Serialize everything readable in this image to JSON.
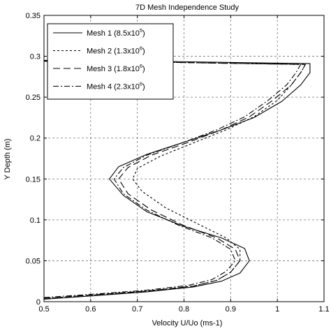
{
  "chart_data": {
    "type": "line",
    "title": "7D Mesh Independence Study",
    "xlabel": "Velocity U/Uo (ms-1)",
    "ylabel": "Y Depth (m)",
    "xlim": [
      0.5,
      1.1
    ],
    "ylim": [
      0,
      0.35
    ],
    "xticks": [
      "0.5",
      "0.6",
      "0.7",
      "0.8",
      "0.9",
      "1",
      "1.1"
    ],
    "yticks": [
      "0",
      "0.05",
      "0.1",
      "0.15",
      "0.2",
      "0.25",
      "0.3",
      "0.35"
    ],
    "grid": true,
    "legend_position": "top-left",
    "series": [
      {
        "name": "Mesh 1 (8.5x10",
        "name_exp": "5",
        "name_end": ")",
        "dash": "none",
        "x": [
          0.5,
          0.6,
          0.72,
          0.82,
          0.88,
          0.92,
          0.94,
          0.93,
          0.88,
          0.8,
          0.72,
          0.67,
          0.64,
          0.66,
          0.72,
          0.8,
          0.88,
          0.95,
          1.01,
          1.05,
          1.07,
          1.07,
          0.72,
          0.5
        ],
        "y": [
          0.003,
          0.007,
          0.012,
          0.018,
          0.025,
          0.035,
          0.05,
          0.065,
          0.078,
          0.092,
          0.11,
          0.13,
          0.15,
          0.165,
          0.18,
          0.195,
          0.21,
          0.225,
          0.245,
          0.265,
          0.28,
          0.291,
          0.294,
          0.295
        ]
      },
      {
        "name": "Mesh 2 (1.3x10",
        "name_exp": "6",
        "name_end": ")",
        "dash": "3,3",
        "x": [
          0.5,
          0.6,
          0.72,
          0.82,
          0.87,
          0.9,
          0.92,
          0.92,
          0.89,
          0.83,
          0.76,
          0.71,
          0.69,
          0.7,
          0.75,
          0.82,
          0.89,
          0.95,
          1,
          1.03,
          1.05,
          1.06,
          0.72,
          0.5
        ],
        "y": [
          0.004,
          0.008,
          0.013,
          0.019,
          0.026,
          0.036,
          0.05,
          0.064,
          0.078,
          0.095,
          0.115,
          0.135,
          0.15,
          0.163,
          0.178,
          0.194,
          0.21,
          0.226,
          0.246,
          0.265,
          0.28,
          0.29,
          0.293,
          0.294
        ]
      },
      {
        "name": "Mesh 3 (1.8x10",
        "name_exp": "6",
        "name_end": ")",
        "dash": "10,5",
        "x": [
          0.5,
          0.6,
          0.72,
          0.82,
          0.87,
          0.9,
          0.92,
          0.91,
          0.87,
          0.8,
          0.73,
          0.68,
          0.66,
          0.68,
          0.73,
          0.81,
          0.88,
          0.94,
          0.99,
          1.03,
          1.05,
          1.06,
          0.72,
          0.5
        ],
        "y": [
          0.004,
          0.008,
          0.013,
          0.019,
          0.026,
          0.036,
          0.05,
          0.064,
          0.078,
          0.093,
          0.112,
          0.132,
          0.15,
          0.164,
          0.179,
          0.195,
          0.21,
          0.226,
          0.246,
          0.265,
          0.28,
          0.29,
          0.293,
          0.294
        ]
      },
      {
        "name": "Mesh 4 (2.3x10",
        "name_exp": "6",
        "name_end": ")",
        "dash": "8,3,2,3",
        "x": [
          0.5,
          0.6,
          0.72,
          0.81,
          0.86,
          0.89,
          0.91,
          0.9,
          0.86,
          0.79,
          0.72,
          0.67,
          0.65,
          0.67,
          0.72,
          0.8,
          0.87,
          0.93,
          0.98,
          1.02,
          1.04,
          1.05,
          0.72,
          0.5
        ],
        "y": [
          0.005,
          0.009,
          0.014,
          0.02,
          0.027,
          0.037,
          0.05,
          0.064,
          0.078,
          0.093,
          0.112,
          0.132,
          0.15,
          0.164,
          0.179,
          0.195,
          0.21,
          0.226,
          0.246,
          0.265,
          0.28,
          0.29,
          0.293,
          0.294
        ]
      }
    ]
  }
}
